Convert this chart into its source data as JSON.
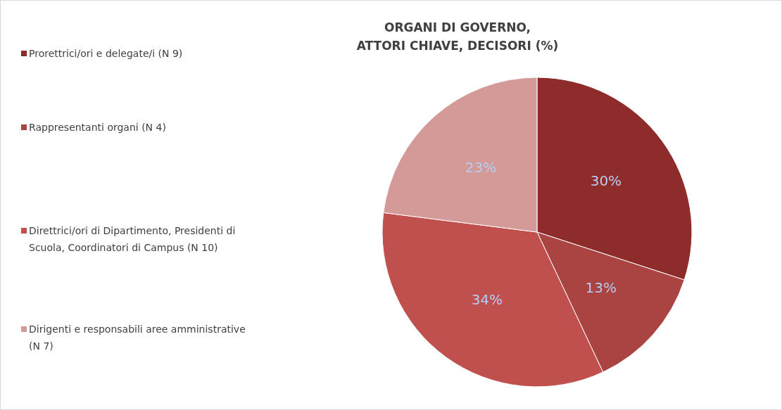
{
  "chart_data": {
    "type": "pie",
    "title": "ORGANI DI GOVERNO,\nATTORI CHIAVE, DECISORI (%)",
    "categories": [
      "Prorettrici/ori e delegate/i (N 9)",
      "Rappresentanti organi (N 4)",
      "Direttrici/ori di Dipartimento, Presidenti di Scuola, Coordinatori di Campus (N 10)",
      "Dirigenti e responsabili aree amministrative (N 7)"
    ],
    "values": [
      30,
      13,
      34,
      23
    ],
    "colors": [
      "#8e2b2b",
      "#a94442",
      "#c0504d",
      "#d49a98"
    ],
    "value_labels": [
      "30%",
      "13%",
      "34%",
      "23%"
    ],
    "legend": "left"
  }
}
